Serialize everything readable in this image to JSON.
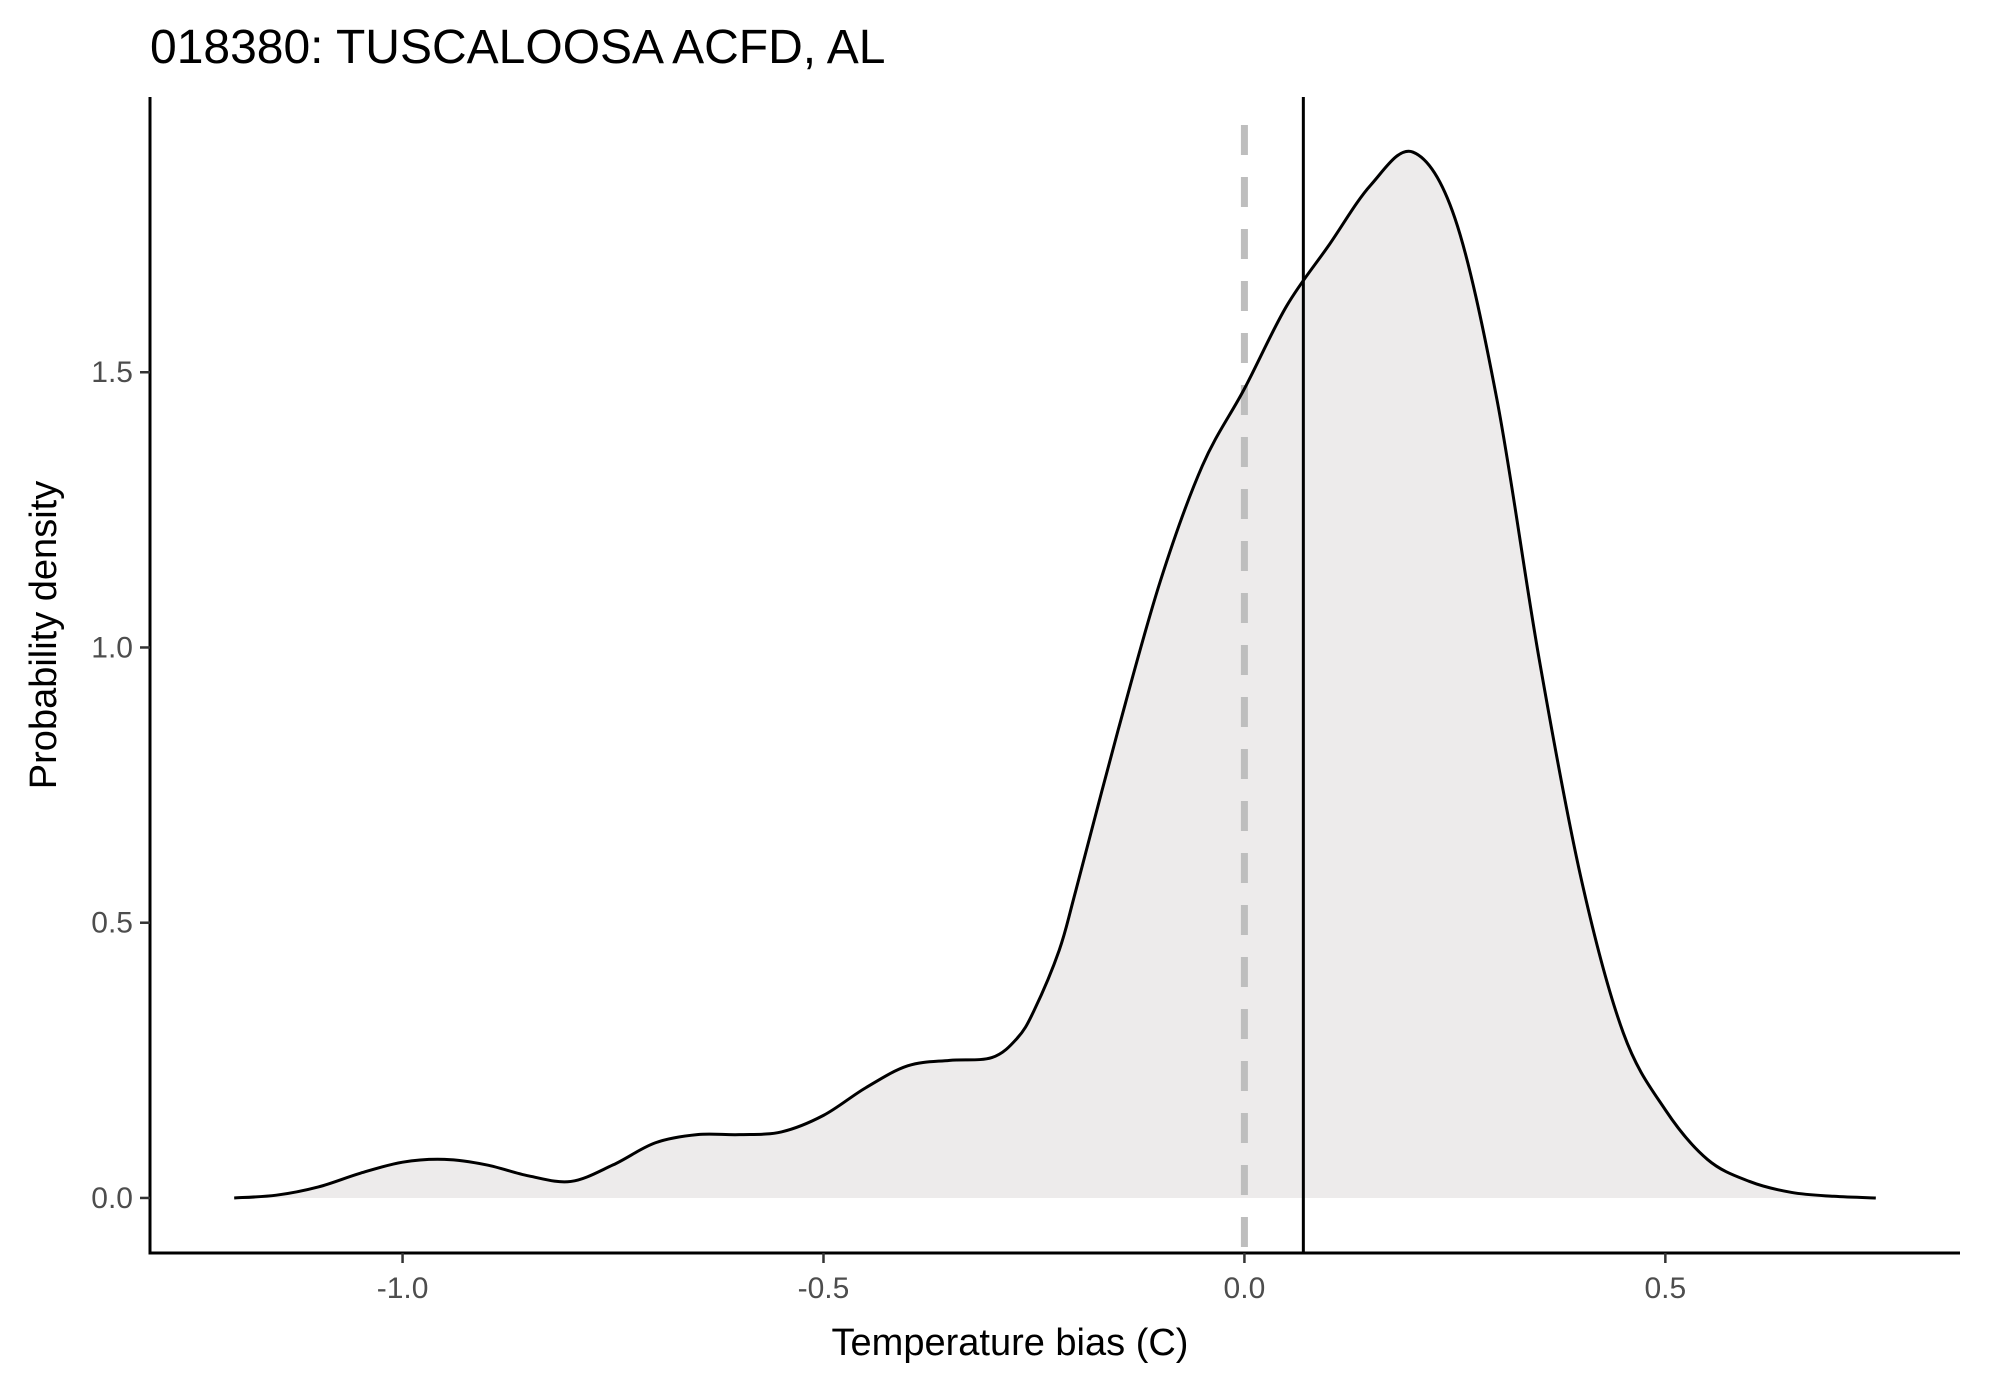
{
  "chart_data": {
    "type": "area",
    "title": "018380: TUSCALOOSA ACFD, AL",
    "xlabel": "Temperature bias (C)",
    "ylabel": "Probability density",
    "xlim": [
      -1.3,
      0.85
    ],
    "ylim": [
      -0.1,
      2.0
    ],
    "x_ticks": [
      -1.0,
      -0.5,
      0.0,
      0.5
    ],
    "x_tick_labels": [
      "-1.0",
      "-0.5",
      "0.0",
      "0.5"
    ],
    "y_ticks": [
      0.0,
      0.5,
      1.0,
      1.5
    ],
    "y_tick_labels": [
      "0.0",
      "0.5",
      "1.0",
      "1.5"
    ],
    "grid": false,
    "fill_color": "#edebeb",
    "line_color": "#000000",
    "reference_line_color": "#bebebe",
    "series": [
      {
        "x": [
          -1.2,
          -1.15,
          -1.1,
          -1.05,
          -1.0,
          -0.95,
          -0.9,
          -0.85,
          -0.8,
          -0.75,
          -0.7,
          -0.65,
          -0.6,
          -0.55,
          -0.5,
          -0.45,
          -0.4,
          -0.35,
          -0.3,
          -0.27,
          -0.25,
          -0.22,
          -0.2,
          -0.15,
          -0.1,
          -0.05,
          0.0,
          0.05,
          0.1,
          0.15,
          0.2,
          0.25,
          0.3,
          0.35,
          0.4,
          0.45,
          0.5,
          0.55,
          0.6,
          0.65,
          0.7,
          0.75
        ],
        "y": [
          0.0,
          0.005,
          0.02,
          0.045,
          0.065,
          0.07,
          0.06,
          0.04,
          0.03,
          0.06,
          0.1,
          0.115,
          0.115,
          0.12,
          0.15,
          0.2,
          0.24,
          0.25,
          0.255,
          0.29,
          0.34,
          0.45,
          0.56,
          0.85,
          1.12,
          1.33,
          1.47,
          1.62,
          1.73,
          1.84,
          1.9,
          1.78,
          1.45,
          0.98,
          0.58,
          0.3,
          0.16,
          0.07,
          0.03,
          0.01,
          0.003,
          0.0
        ]
      }
    ],
    "reference_lines": [
      {
        "x": 0.0,
        "style": "dashed"
      },
      {
        "x": 0.07,
        "style": "solid"
      }
    ]
  }
}
